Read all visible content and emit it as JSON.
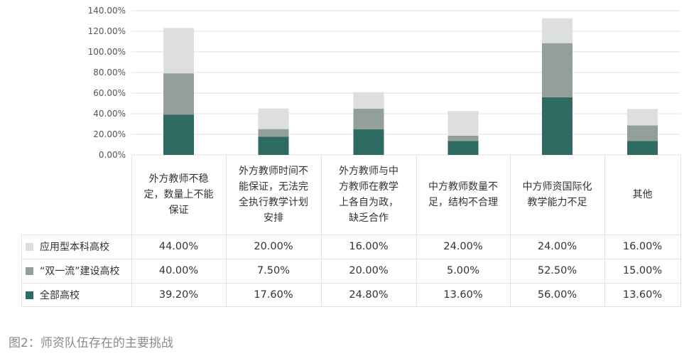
{
  "chart_data": {
    "type": "bar",
    "stacked": true,
    "categories": [
      "外方教师不稳\n定，数量上不能\n保证",
      "外方教师时间不\n能保证，无法完\n全执行教学计划\n安排",
      "外方教师与中\n方教师在教学\n上各自为政，\n缺乏合作",
      "中方教师数量不\n足，结构不合理",
      "中方师资国际化\n教学能力不足",
      "其他"
    ],
    "series": [
      {
        "name": "全部高校",
        "values": [
          39.2,
          17.6,
          24.8,
          13.6,
          56.0,
          13.6
        ],
        "labels": [
          "39.20%",
          "17.60%",
          "24.80%",
          "13.60%",
          "56.00%",
          "13.60%"
        ],
        "color": "#2e6b63"
      },
      {
        "name": "“双一流”建设高校",
        "values": [
          40.0,
          7.5,
          20.0,
          5.0,
          52.5,
          15.0
        ],
        "labels": [
          "40.00%",
          "7.50%",
          "20.00%",
          "5.00%",
          "52.50%",
          "15.00%"
        ],
        "color": "#939f99"
      },
      {
        "name": "应用型本科高校",
        "values": [
          44.0,
          20.0,
          16.0,
          24.0,
          24.0,
          16.0
        ],
        "labels": [
          "44.00%",
          "20.00%",
          "16.00%",
          "24.00%",
          "24.00%",
          "16.00%"
        ],
        "color": "#dcdfdc"
      }
    ],
    "table_row_order": [
      2,
      1,
      0
    ],
    "yticks": [
      "0.00%",
      "20.00%",
      "40.00%",
      "60.00%",
      "80.00%",
      "100.00%",
      "120.00%",
      "140.00%"
    ],
    "ylim": [
      0,
      140
    ],
    "grid": true,
    "legend": "table-left"
  },
  "caption": "图2：师资队伍存在的主要挑战"
}
